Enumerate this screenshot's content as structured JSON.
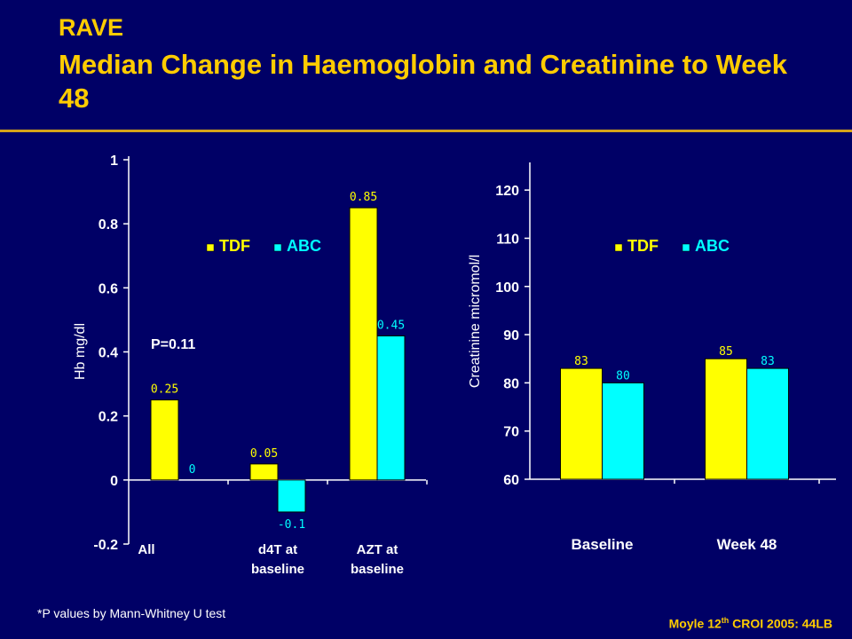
{
  "slide": {
    "title_line1": "RAVE",
    "title_line2": "Median Change in Haemoglobin and Creatinine to Week 48",
    "footnote": "*P values by Mann-Whitney U test",
    "source_prefix": "Moyle 12",
    "source_sup": "th",
    "source_suffix": " CROI 2005: 44LB"
  },
  "colors": {
    "background": "#000066",
    "title": "#ffcc00",
    "tdf": "#ffff00",
    "abc": "#00ffff",
    "text": "#ffffff"
  },
  "chart_data": [
    {
      "type": "bar",
      "ylabel": "Hb mg/dl",
      "ylim": [
        -0.2,
        1.0
      ],
      "yticks": [
        -0.2,
        0,
        0.2,
        0.4,
        0.6,
        0.8,
        1
      ],
      "ytick_labels": [
        "-0.2",
        "0",
        "0.2",
        "0.4",
        "0.6",
        "0.8",
        "1"
      ],
      "categories": [
        "All",
        "d4T at baseline",
        "AZT at baseline"
      ],
      "series": [
        {
          "name": "TDF",
          "values": [
            0.25,
            0.05,
            0.85
          ],
          "labels": [
            "0.25",
            "0.05",
            "0.85"
          ]
        },
        {
          "name": "ABC",
          "values": [
            0,
            -0.1,
            0.45
          ],
          "labels": [
            "0",
            "-0.1",
            "0.45"
          ]
        }
      ],
      "annotation": "P=0.11",
      "legend_position": "top-center",
      "grid": false
    },
    {
      "type": "bar",
      "ylabel": "Creatinine micromol/l",
      "ylim": [
        60,
        125
      ],
      "yticks": [
        60,
        70,
        80,
        90,
        100,
        110,
        120
      ],
      "ytick_labels": [
        "60",
        "70",
        "80",
        "90",
        "100",
        "110",
        "120"
      ],
      "categories": [
        "Baseline",
        "Week 48"
      ],
      "series": [
        {
          "name": "TDF",
          "values": [
            83,
            85
          ],
          "labels": [
            "83",
            "85"
          ]
        },
        {
          "name": "ABC",
          "values": [
            80,
            83
          ],
          "labels": [
            "80",
            "83"
          ]
        }
      ],
      "legend_position": "top-center",
      "grid": false
    }
  ]
}
